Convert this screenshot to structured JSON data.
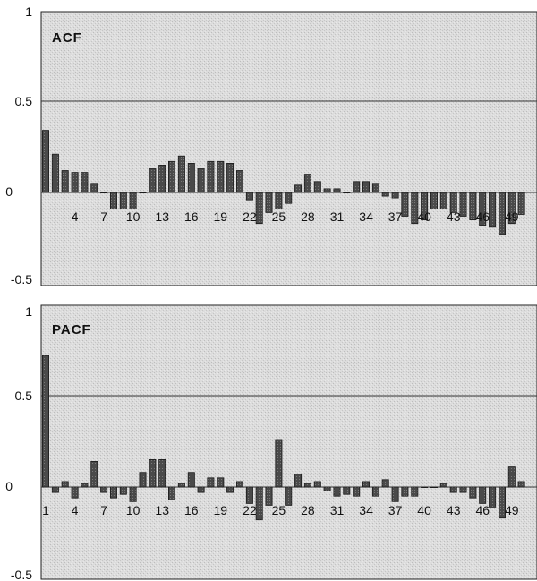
{
  "chart_data": [
    {
      "type": "bar",
      "title": "ACF",
      "ylim": [
        -0.5,
        1
      ],
      "y_ticks": [
        "1",
        "0.5",
        "0",
        "-0.5"
      ],
      "x_tick_labels": [
        "4",
        "7",
        "10",
        "13",
        "16",
        "19",
        "22",
        "25",
        "28",
        "31",
        "34",
        "37",
        "40",
        "43",
        "46",
        "49"
      ],
      "reference_line": 0.5,
      "x": [
        1,
        2,
        3,
        4,
        5,
        6,
        7,
        8,
        9,
        10,
        11,
        12,
        13,
        14,
        15,
        16,
        17,
        18,
        19,
        20,
        21,
        22,
        23,
        24,
        25,
        26,
        27,
        28,
        29,
        30,
        31,
        32,
        33,
        34,
        35,
        36,
        37,
        38,
        39,
        40,
        41,
        42,
        43,
        44,
        45,
        46,
        47,
        48,
        49,
        50
      ],
      "values": [
        0.34,
        0.21,
        0.12,
        0.11,
        0.11,
        0.05,
        0,
        -0.09,
        -0.09,
        -0.09,
        0,
        0.13,
        0.15,
        0.17,
        0.2,
        0.16,
        0.13,
        0.17,
        0.17,
        0.16,
        0.12,
        -0.04,
        -0.17,
        -0.11,
        -0.09,
        -0.06,
        0.04,
        0.1,
        0.06,
        0.02,
        0.02,
        0,
        0.06,
        0.06,
        0.05,
        -0.02,
        -0.03,
        -0.13,
        -0.17,
        -0.15,
        -0.09,
        -0.09,
        -0.11,
        -0.13,
        -0.15,
        -0.18,
        -0.19,
        -0.23,
        -0.17,
        -0.12
      ]
    },
    {
      "type": "bar",
      "title": "PACF",
      "ylim": [
        -0.5,
        1
      ],
      "y_ticks": [
        "1",
        "0.5",
        "0",
        "-0.5"
      ],
      "x_tick_labels": [
        "1",
        "4",
        "7",
        "10",
        "13",
        "16",
        "19",
        "22",
        "25",
        "28",
        "31",
        "34",
        "37",
        "40",
        "43",
        "46",
        "49"
      ],
      "reference_line": 0.5,
      "x": [
        1,
        2,
        3,
        4,
        5,
        6,
        7,
        8,
        9,
        10,
        11,
        12,
        13,
        14,
        15,
        16,
        17,
        18,
        19,
        20,
        21,
        22,
        23,
        24,
        25,
        26,
        27,
        28,
        29,
        30,
        31,
        32,
        33,
        34,
        35,
        36,
        37,
        38,
        39,
        40,
        41,
        42,
        43,
        44,
        45,
        46,
        47,
        48,
        49,
        50
      ],
      "values": [
        0.72,
        -0.03,
        0.03,
        -0.06,
        0.02,
        0.14,
        -0.03,
        -0.06,
        -0.04,
        -0.08,
        0.08,
        0.15,
        0.15,
        -0.07,
        0.02,
        0.08,
        -0.03,
        0.05,
        0.05,
        -0.03,
        0.03,
        -0.09,
        -0.18,
        -0.1,
        0.26,
        -0.1,
        0.07,
        0.02,
        0.03,
        -0.02,
        -0.05,
        -0.04,
        -0.05,
        0.03,
        -0.05,
        0.04,
        -0.08,
        -0.05,
        -0.05,
        0,
        0,
        0.02,
        -0.03,
        -0.03,
        -0.06,
        -0.09,
        -0.11,
        -0.17,
        0.11,
        0.03
      ]
    }
  ]
}
